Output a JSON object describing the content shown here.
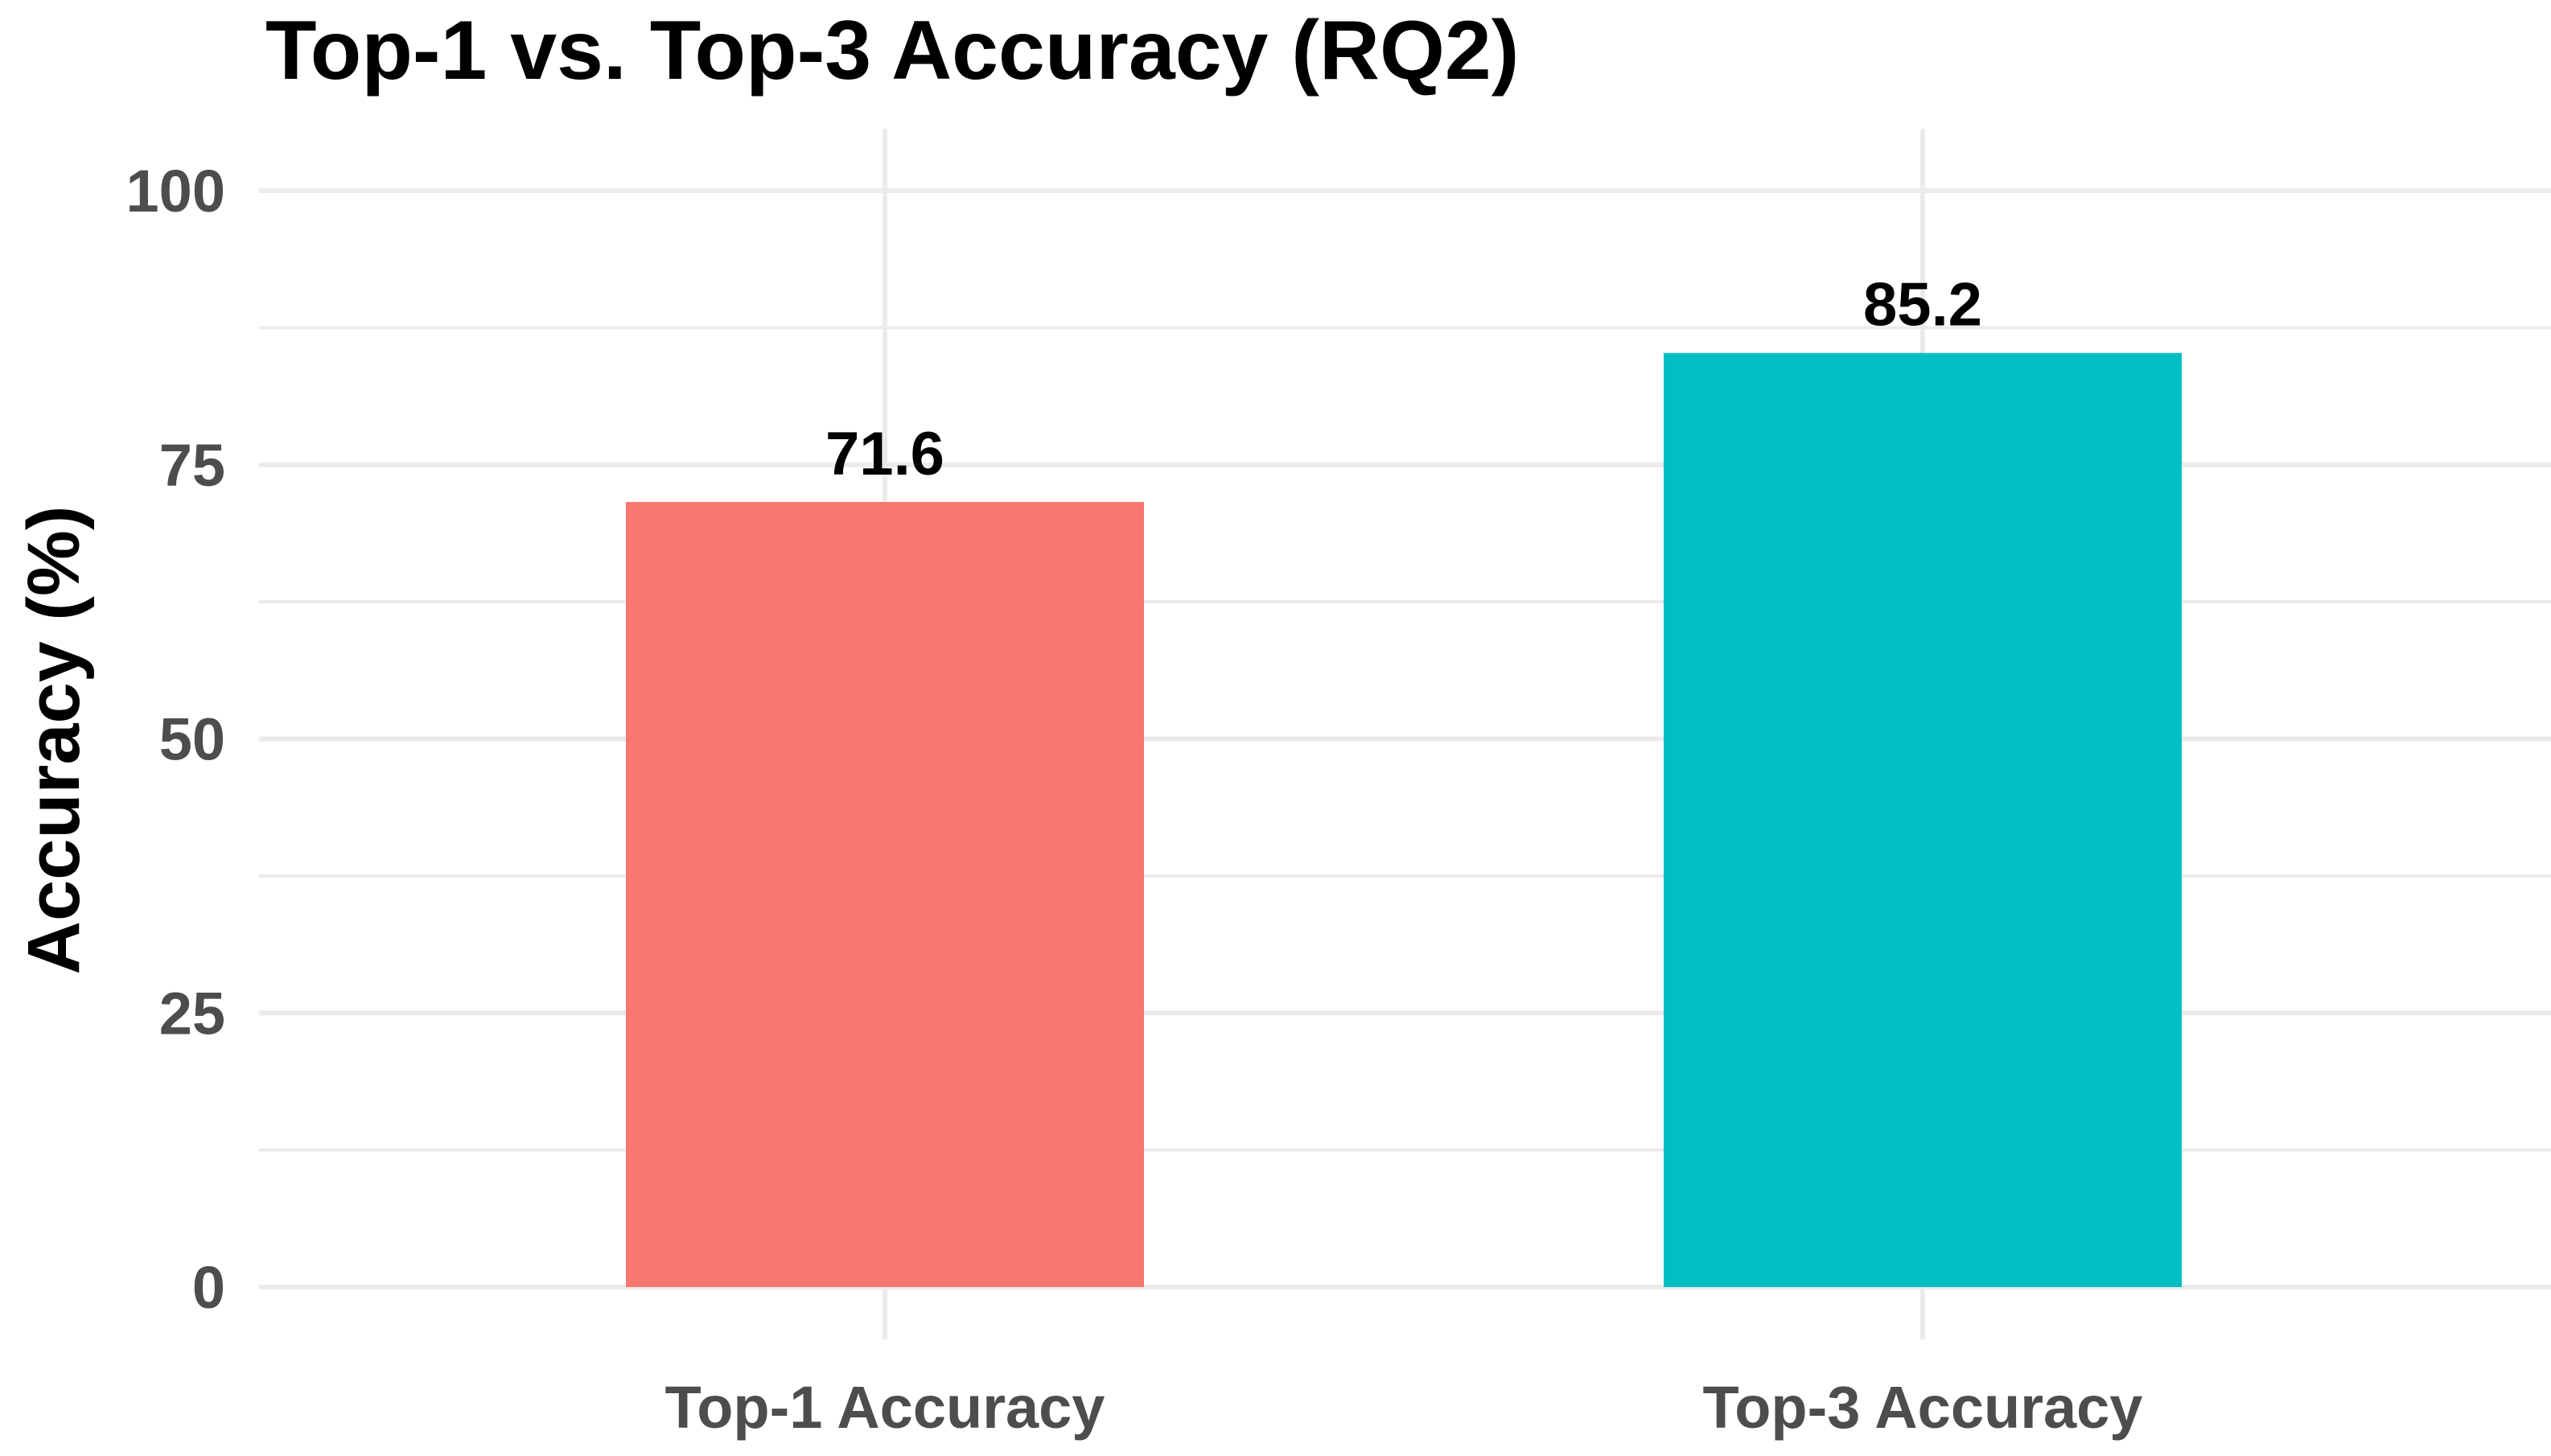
{
  "chart_data": {
    "type": "bar",
    "title": "Top-1 vs. Top-3 Accuracy (RQ2)",
    "xlabel": "",
    "ylabel": "Accuracy (%)",
    "categories": [
      "Top-1 Accuracy",
      "Top-3 Accuracy"
    ],
    "values": [
      71.6,
      85.2
    ],
    "value_labels": [
      "71.6",
      "85.2"
    ],
    "colors": [
      "#F8766D",
      "#00BFC4"
    ],
    "ylim": [
      0,
      100
    ],
    "yticks": [
      0,
      25,
      50,
      75,
      100
    ],
    "ytick_labels": [
      "0",
      "25",
      "50",
      "75",
      "100"
    ],
    "grid": true,
    "legend": "none"
  }
}
